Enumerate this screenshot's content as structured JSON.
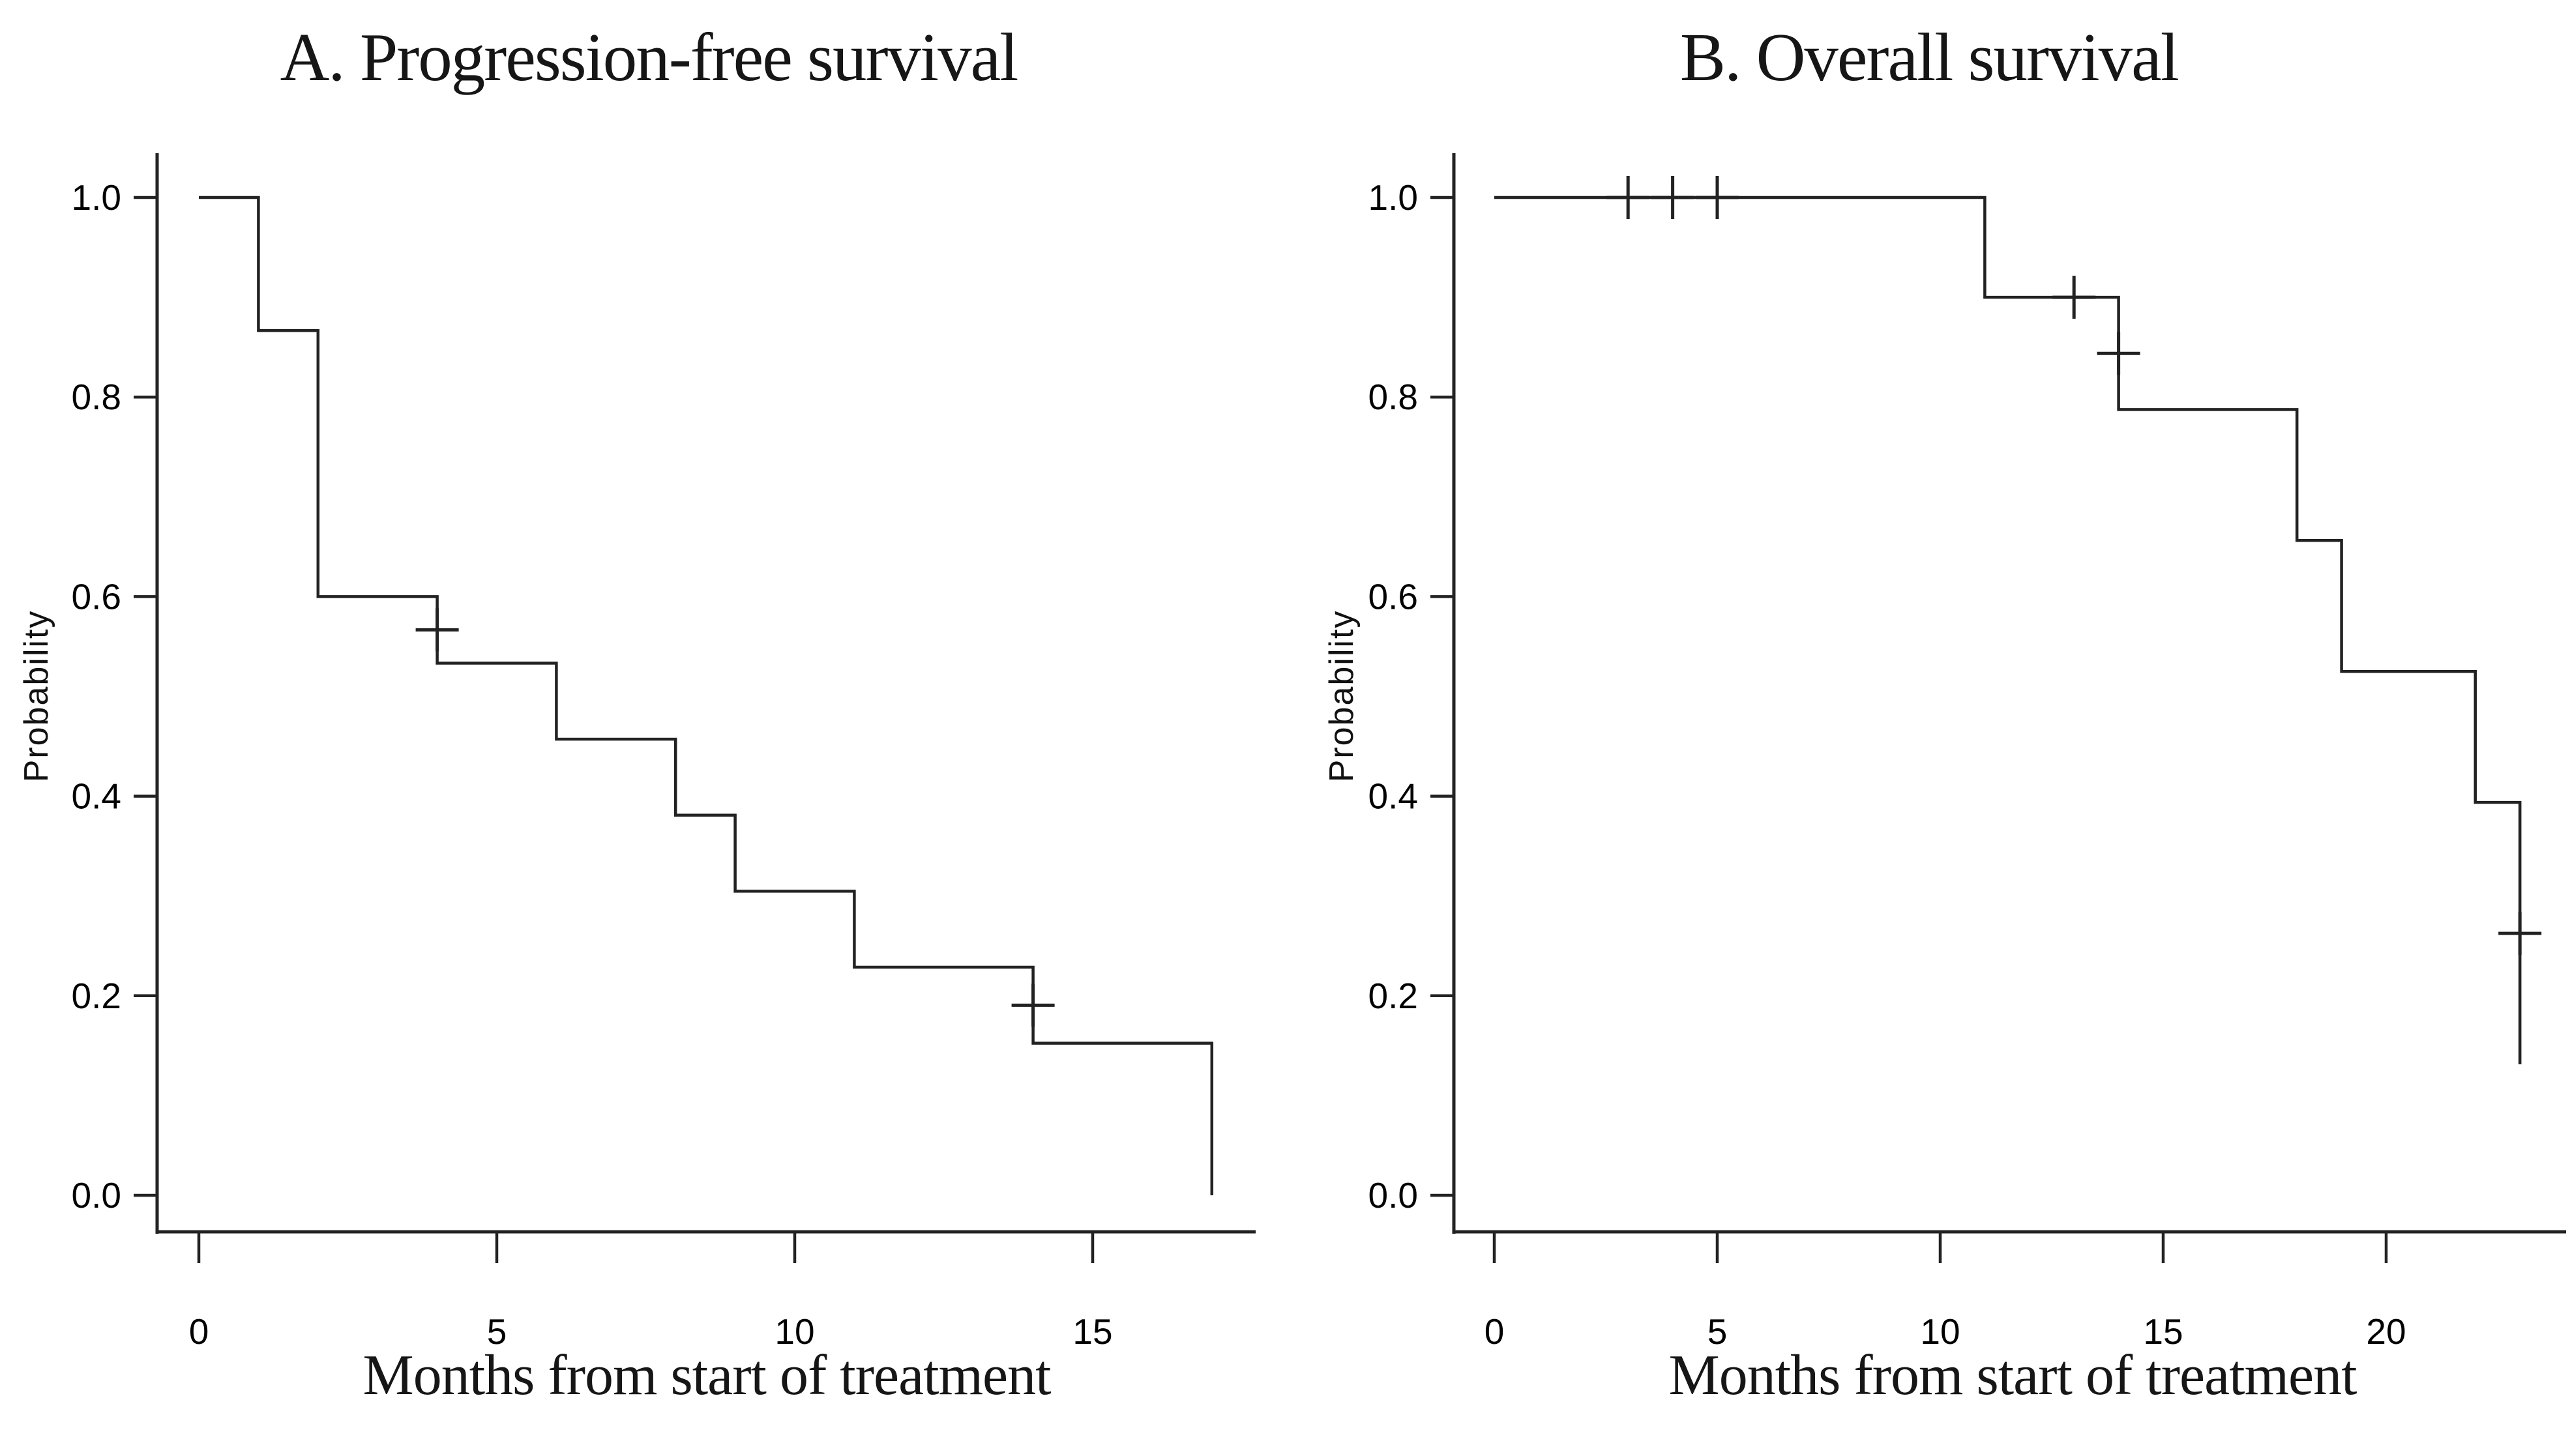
{
  "figure": {
    "kind": "kaplan-meier-survival-figure",
    "background": "#ffffff"
  },
  "colors": {
    "ink": "#222222",
    "text": "#000000",
    "background": "#ffffff"
  },
  "chart_data": [
    {
      "panel": "A",
      "type": "line",
      "subtype": "kaplan_meier_step",
      "title": "A. Progression-free survival",
      "xlabel": "Months from start of treatment",
      "ylabel": "Probability",
      "xlim": [
        0,
        17.7
      ],
      "ylim": [
        0,
        1
      ],
      "x_ticks": [
        0,
        5,
        10,
        15
      ],
      "y_ticks": [
        1.0,
        0.8,
        0.6,
        0.4,
        0.2,
        0.0
      ],
      "grid": false,
      "legend": "none",
      "steps_month_probability": [
        [
          0,
          1.0
        ],
        [
          1,
          0.8667
        ],
        [
          2,
          0.6
        ],
        [
          4,
          0.5333
        ],
        [
          6,
          0.4571
        ],
        [
          8,
          0.381
        ],
        [
          9,
          0.3048
        ],
        [
          11,
          0.2286
        ],
        [
          14,
          0.1524
        ],
        [
          17,
          0.0
        ]
      ],
      "censor_marks_month_probability": [
        [
          4,
          0.5667
        ],
        [
          14,
          0.1905
        ]
      ]
    },
    {
      "panel": "B",
      "type": "line",
      "subtype": "kaplan_meier_step",
      "title": "B. Overall survival",
      "xlabel": "Months from start of treatment",
      "ylabel": "Probability",
      "xlim": [
        0,
        24
      ],
      "ylim": [
        0,
        1
      ],
      "x_ticks": [
        0,
        5,
        10,
        15,
        20
      ],
      "y_ticks": [
        1.0,
        0.8,
        0.6,
        0.4,
        0.2,
        0.0
      ],
      "grid": false,
      "legend": "none",
      "steps_month_probability": [
        [
          0,
          1.0
        ],
        [
          11,
          0.9
        ],
        [
          14,
          0.7875
        ],
        [
          18,
          0.65625
        ],
        [
          19,
          0.525
        ],
        [
          22,
          0.39375
        ],
        [
          23,
          0.13125
        ]
      ],
      "censor_marks_month_probability": [
        [
          3,
          1.0
        ],
        [
          4,
          1.0
        ],
        [
          5,
          1.0
        ],
        [
          13,
          0.9
        ],
        [
          14,
          0.84375
        ],
        [
          23,
          0.2625
        ]
      ]
    }
  ]
}
